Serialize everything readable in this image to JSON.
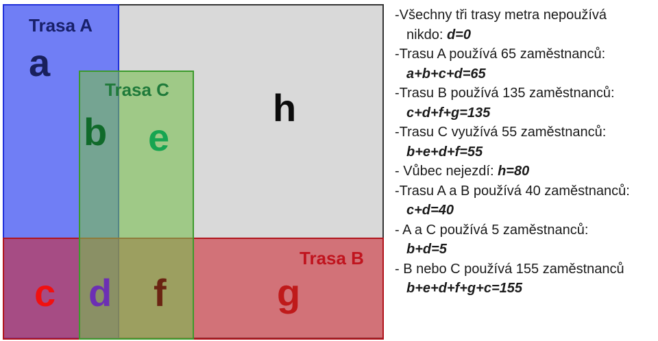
{
  "diagram": {
    "set_titles": {
      "a": "Trasa A",
      "b": "Trasa B",
      "c": "Trasa C"
    },
    "regions": {
      "a": "a",
      "b": "b",
      "c": "c",
      "d": "d",
      "e": "e",
      "f": "f",
      "g": "g",
      "h": "h"
    },
    "colors": {
      "universe": "#d9d9d9",
      "trasa_a": "#4a5aff",
      "trasa_b": "#cd2832",
      "trasa_c": "#78be50"
    }
  },
  "notes": [
    {
      "text": "-Všechny tři trasy metra nepoužívá"
    },
    {
      "text": "nikdo: ",
      "eq": "d=0",
      "indent": true
    },
    {
      "text": "-Trasu A používá 65 zaměstnanců:"
    },
    {
      "text": "",
      "eq": "a+b+c+d=65",
      "indent": true
    },
    {
      "text": "-Trasu B používá 135 zaměstnanců:"
    },
    {
      "text": "",
      "eq": "c+d+f+g=135",
      "indent": true
    },
    {
      "text": "-Trasu C využívá 55 zaměstnanců:"
    },
    {
      "text": "",
      "eq": "b+e+d+f=55",
      "indent": true
    },
    {
      "text": "- Vůbec nejezdí: ",
      "eq": "h=80"
    },
    {
      "text": "-Trasu A a B používá 40 zaměstnanců:"
    },
    {
      "text": "",
      "eq": "c+d=40",
      "indent": true
    },
    {
      "text": "- A a C používá 5 zaměstnanců:"
    },
    {
      "text": "",
      "eq": "b+d=5",
      "indent": true
    },
    {
      "text": "- B nebo C používá 155 zaměstnanců"
    },
    {
      "text": "",
      "eq": "b+e+d+f+g+c=155",
      "indent": true
    }
  ]
}
